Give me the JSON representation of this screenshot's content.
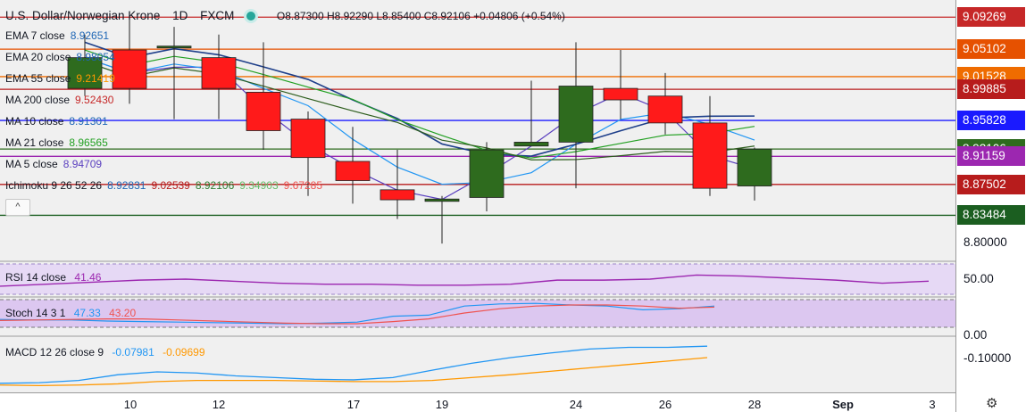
{
  "header": {
    "symbol": "U.S. Dollar/Norwegian Krone",
    "interval": "1D",
    "source": "FXCM",
    "ohlc": "O8.87300 H8.92290 L8.85400 C8.92106 +0.04806 (+0.54%)"
  },
  "indicators": [
    {
      "label": "EMA 7 close",
      "value": "8.92651",
      "color": "#1e66b5"
    },
    {
      "label": "EMA 20 close",
      "value": "8.98054",
      "color": "#1e66b5"
    },
    {
      "label": "EMA 55 close",
      "value": "9.21419",
      "color": "#ff9800"
    },
    {
      "label": "MA 200 close",
      "value": "9.52430",
      "color": "#c62828"
    },
    {
      "label": "MA 10 close",
      "value": "8.91301",
      "color": "#1e66b5"
    },
    {
      "label": "MA 21 close",
      "value": "8.96565",
      "color": "#22a022"
    },
    {
      "label": "MA 5 close",
      "value": "8.94709",
      "color": "#5a3fbf"
    },
    {
      "label": "Ichimoku 9 26 52 26",
      "values": [
        "8.92831",
        "9.02539",
        "8.92106",
        "9.34903",
        "9.67285"
      ],
      "colors": [
        "#1e66b5",
        "#b71c1c",
        "#2e7d32",
        "#66bb6a",
        "#ef5350"
      ]
    }
  ],
  "collapse_label": "^",
  "price_tags": [
    {
      "value": "9.09269",
      "color": "#c62828"
    },
    {
      "value": "9.05102",
      "color": "#e65100"
    },
    {
      "value": "9.01528",
      "color": "#ef6c00"
    },
    {
      "value": "8.99885",
      "color": "#b71c1c"
    },
    {
      "value": "8.95828",
      "color": "#1a1aff"
    },
    {
      "value": "8.92106",
      "color": "#2e6b1e"
    },
    {
      "value": "8.91159",
      "color": "#9c27b0"
    },
    {
      "value": "8.87502",
      "color": "#b71c1c"
    },
    {
      "value": "8.83484",
      "color": "#1b5e20"
    }
  ],
  "price_ticks": [
    "8.80000"
  ],
  "rsi": {
    "label": "RSI 14 close",
    "value": "41.46",
    "color": "#9c27b0",
    "tick": "50.00",
    "values": [
      38,
      40,
      42,
      44,
      45,
      43,
      41,
      40,
      40,
      39,
      39,
      40,
      44,
      44,
      45,
      49,
      48,
      46,
      44,
      41,
      43
    ]
  },
  "stoch": {
    "label": "Stoch 14 3 1",
    "k": "47.33",
    "d": "43.20",
    "k_color": "#2196f3",
    "d_color": "#ef5350",
    "tick": "0.00",
    "k_values": [
      46,
      44,
      44,
      40,
      38,
      36,
      34,
      32,
      30,
      32,
      36,
      58,
      62,
      96,
      104,
      106,
      100,
      96,
      82,
      86,
      96
    ],
    "d_values": [
      42,
      44,
      46,
      48,
      48,
      44,
      40,
      36,
      32,
      30,
      30,
      38,
      48,
      70,
      86,
      96,
      100,
      100,
      96,
      88,
      92
    ]
  },
  "macd": {
    "label": "MACD 12 26 close 9",
    "macd_value": "-0.07981",
    "signal_value": "-0.09699",
    "macd_color": "#2196f3",
    "signal_color": "#ff9800",
    "tick": "-0.10000",
    "macd_values": [
      -0.145,
      -0.144,
      -0.14,
      -0.13,
      -0.125,
      -0.127,
      -0.132,
      -0.135,
      -0.138,
      -0.139,
      -0.135,
      -0.122,
      -0.11,
      -0.1,
      -0.092,
      -0.085,
      -0.082,
      -0.082,
      -0.08
    ],
    "signal_values": [
      -0.148,
      -0.149,
      -0.148,
      -0.146,
      -0.142,
      -0.14,
      -0.14,
      -0.14,
      -0.141,
      -0.142,
      -0.142,
      -0.14,
      -0.135,
      -0.13,
      -0.124,
      -0.118,
      -0.112,
      -0.106,
      -0.1
    ]
  },
  "x_ticks": [
    "10",
    "12",
    "17",
    "19",
    "24",
    "26",
    "28",
    "Sep",
    "3"
  ],
  "chart_data": {
    "type": "candlestick",
    "x": [
      "Aug 6",
      "Aug 7",
      "Aug 10",
      "Aug 11",
      "Aug 12",
      "Aug 13",
      "Aug 14",
      "Aug 17",
      "Aug 18",
      "Aug 19",
      "Aug 20",
      "Aug 21",
      "Aug 24",
      "Aug 25",
      "Aug 26",
      "Aug 27"
    ],
    "open": [
      9.0,
      9.05,
      9.055,
      9.04,
      8.995,
      8.96,
      8.905,
      8.868,
      8.853,
      8.858,
      8.925,
      8.93,
      9.0,
      8.99,
      8.955,
      8.873
    ],
    "high": [
      9.07,
      9.09,
      9.08,
      9.07,
      9.06,
      8.97,
      8.95,
      8.92,
      8.86,
      8.93,
      9.01,
      9.06,
      9.05,
      9.02,
      8.99,
      8.923
    ],
    "low": [
      8.99,
      8.98,
      8.96,
      8.96,
      8.92,
      8.86,
      8.85,
      8.83,
      8.798,
      8.84,
      8.925,
      8.87,
      8.96,
      8.94,
      8.86,
      8.854
    ],
    "close": [
      9.04,
      9.0,
      9.055,
      9.0,
      8.945,
      8.91,
      8.88,
      8.855,
      8.856,
      8.92,
      8.93,
      9.003,
      8.985,
      8.955,
      8.87,
      8.921
    ],
    "ylim": [
      8.775,
      9.115
    ],
    "grid": true
  }
}
